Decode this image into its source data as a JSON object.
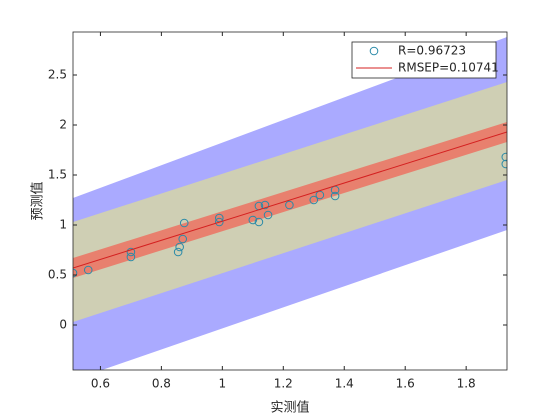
{
  "chart_data": {
    "type": "scatter",
    "xlabel": "实测值",
    "ylabel": "预测值",
    "xlim": [
      0.51,
      1.934
    ],
    "ylim": [
      -0.45,
      2.93
    ],
    "xticks": [
      0.6,
      0.8,
      1,
      1.2,
      1.4,
      1.6,
      1.8
    ],
    "yticks": [
      0,
      0.5,
      1,
      1.5,
      2,
      2.5
    ],
    "bands": [
      {
        "color": "#aaaaff",
        "x": [
          0.51,
          1.934
        ],
        "lower": [
          -0.55,
          0.95
        ],
        "upper": [
          1.27,
          2.88
        ]
      },
      {
        "color": "#cfcfb4",
        "x": [
          0.51,
          1.934
        ],
        "lower": [
          0.03,
          1.45
        ],
        "upper": [
          1.03,
          2.43
        ]
      },
      {
        "color": "#e8806e",
        "x": [
          0.51,
          1.934
        ],
        "lower": [
          0.47,
          1.83
        ],
        "upper": [
          0.67,
          2.03
        ]
      }
    ],
    "series": [
      {
        "name": "R=0.96723",
        "color": "#2a8aa8",
        "x": [
          0.51,
          0.56,
          0.7,
          0.7,
          0.855,
          0.86,
          0.87,
          0.875,
          0.99,
          0.99,
          1.1,
          1.12,
          1.12,
          1.14,
          1.15,
          1.22,
          1.3,
          1.32,
          1.37,
          1.37,
          1.93,
          1.93
        ],
        "values": [
          0.52,
          0.55,
          0.73,
          0.68,
          0.73,
          0.78,
          0.86,
          1.02,
          1.07,
          1.03,
          1.05,
          1.03,
          1.19,
          1.2,
          1.1,
          1.2,
          1.25,
          1.3,
          1.35,
          1.29,
          1.68,
          1.61
        ]
      },
      {
        "name": "RMSEP=0.10741",
        "type": "line",
        "color": "#d42020",
        "x": [
          0.51,
          1.934
        ],
        "values": [
          0.57,
          1.93
        ]
      }
    ]
  }
}
